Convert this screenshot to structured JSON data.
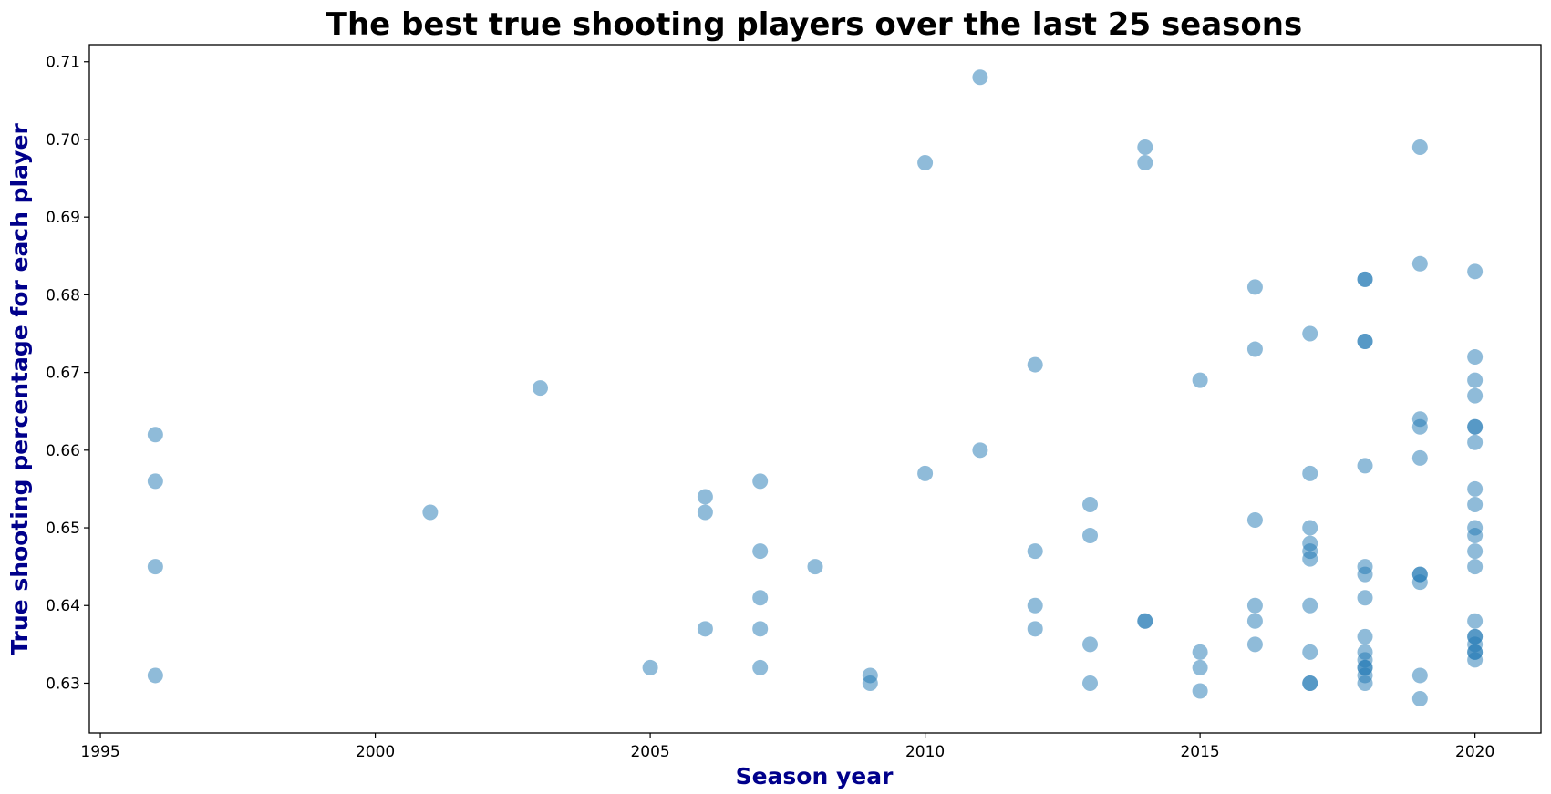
{
  "chart_data": {
    "type": "scatter",
    "title": "The best true shooting players over the last 25 seasons",
    "xlabel": "Season year",
    "ylabel": "True shooting percentage for each player",
    "xlim": [
      1994.8,
      2021.2
    ],
    "ylim": [
      0.6236,
      0.7122
    ],
    "xticks": [
      1995,
      2000,
      2005,
      2010,
      2015,
      2020
    ],
    "yticks": [
      0.63,
      0.64,
      0.65,
      0.66,
      0.67,
      0.68,
      0.69,
      0.7,
      0.71
    ],
    "grid": false,
    "legend": "none",
    "marker_color": "#1f77b4",
    "marker_alpha": 0.5,
    "axis_label_color": "#00008b",
    "points": [
      {
        "x": 1996,
        "y": 0.662
      },
      {
        "x": 1996,
        "y": 0.656
      },
      {
        "x": 1996,
        "y": 0.645
      },
      {
        "x": 1996,
        "y": 0.631
      },
      {
        "x": 2001,
        "y": 0.652
      },
      {
        "x": 2003,
        "y": 0.668
      },
      {
        "x": 2005,
        "y": 0.632
      },
      {
        "x": 2006,
        "y": 0.654
      },
      {
        "x": 2006,
        "y": 0.652
      },
      {
        "x": 2006,
        "y": 0.637
      },
      {
        "x": 2007,
        "y": 0.656
      },
      {
        "x": 2007,
        "y": 0.647
      },
      {
        "x": 2007,
        "y": 0.641
      },
      {
        "x": 2007,
        "y": 0.637
      },
      {
        "x": 2007,
        "y": 0.632
      },
      {
        "x": 2008,
        "y": 0.645
      },
      {
        "x": 2009,
        "y": 0.631
      },
      {
        "x": 2009,
        "y": 0.63
      },
      {
        "x": 2010,
        "y": 0.697
      },
      {
        "x": 2010,
        "y": 0.657
      },
      {
        "x": 2011,
        "y": 0.708
      },
      {
        "x": 2011,
        "y": 0.66
      },
      {
        "x": 2012,
        "y": 0.671
      },
      {
        "x": 2012,
        "y": 0.647
      },
      {
        "x": 2012,
        "y": 0.64
      },
      {
        "x": 2012,
        "y": 0.637
      },
      {
        "x": 2013,
        "y": 0.653
      },
      {
        "x": 2013,
        "y": 0.649
      },
      {
        "x": 2013,
        "y": 0.635
      },
      {
        "x": 2013,
        "y": 0.63
      },
      {
        "x": 2014,
        "y": 0.699
      },
      {
        "x": 2014,
        "y": 0.697
      },
      {
        "x": 2014,
        "y": 0.638
      },
      {
        "x": 2014,
        "y": 0.638
      },
      {
        "x": 2015,
        "y": 0.669
      },
      {
        "x": 2015,
        "y": 0.634
      },
      {
        "x": 2015,
        "y": 0.632
      },
      {
        "x": 2015,
        "y": 0.629
      },
      {
        "x": 2016,
        "y": 0.681
      },
      {
        "x": 2016,
        "y": 0.673
      },
      {
        "x": 2016,
        "y": 0.651
      },
      {
        "x": 2016,
        "y": 0.64
      },
      {
        "x": 2016,
        "y": 0.638
      },
      {
        "x": 2016,
        "y": 0.635
      },
      {
        "x": 2017,
        "y": 0.675
      },
      {
        "x": 2017,
        "y": 0.657
      },
      {
        "x": 2017,
        "y": 0.65
      },
      {
        "x": 2017,
        "y": 0.648
      },
      {
        "x": 2017,
        "y": 0.647
      },
      {
        "x": 2017,
        "y": 0.646
      },
      {
        "x": 2017,
        "y": 0.64
      },
      {
        "x": 2017,
        "y": 0.634
      },
      {
        "x": 2017,
        "y": 0.63
      },
      {
        "x": 2017,
        "y": 0.63
      },
      {
        "x": 2018,
        "y": 0.682
      },
      {
        "x": 2018,
        "y": 0.682
      },
      {
        "x": 2018,
        "y": 0.674
      },
      {
        "x": 2018,
        "y": 0.674
      },
      {
        "x": 2018,
        "y": 0.658
      },
      {
        "x": 2018,
        "y": 0.645
      },
      {
        "x": 2018,
        "y": 0.644
      },
      {
        "x": 2018,
        "y": 0.641
      },
      {
        "x": 2018,
        "y": 0.636
      },
      {
        "x": 2018,
        "y": 0.634
      },
      {
        "x": 2018,
        "y": 0.633
      },
      {
        "x": 2018,
        "y": 0.632
      },
      {
        "x": 2018,
        "y": 0.632
      },
      {
        "x": 2018,
        "y": 0.631
      },
      {
        "x": 2018,
        "y": 0.63
      },
      {
        "x": 2019,
        "y": 0.699
      },
      {
        "x": 2019,
        "y": 0.684
      },
      {
        "x": 2019,
        "y": 0.664
      },
      {
        "x": 2019,
        "y": 0.663
      },
      {
        "x": 2019,
        "y": 0.659
      },
      {
        "x": 2019,
        "y": 0.644
      },
      {
        "x": 2019,
        "y": 0.644
      },
      {
        "x": 2019,
        "y": 0.643
      },
      {
        "x": 2019,
        "y": 0.631
      },
      {
        "x": 2019,
        "y": 0.628
      },
      {
        "x": 2020,
        "y": 0.683
      },
      {
        "x": 2020,
        "y": 0.672
      },
      {
        "x": 2020,
        "y": 0.669
      },
      {
        "x": 2020,
        "y": 0.667
      },
      {
        "x": 2020,
        "y": 0.663
      },
      {
        "x": 2020,
        "y": 0.663
      },
      {
        "x": 2020,
        "y": 0.661
      },
      {
        "x": 2020,
        "y": 0.655
      },
      {
        "x": 2020,
        "y": 0.653
      },
      {
        "x": 2020,
        "y": 0.65
      },
      {
        "x": 2020,
        "y": 0.649
      },
      {
        "x": 2020,
        "y": 0.647
      },
      {
        "x": 2020,
        "y": 0.645
      },
      {
        "x": 2020,
        "y": 0.638
      },
      {
        "x": 2020,
        "y": 0.636
      },
      {
        "x": 2020,
        "y": 0.636
      },
      {
        "x": 2020,
        "y": 0.635
      },
      {
        "x": 2020,
        "y": 0.634
      },
      {
        "x": 2020,
        "y": 0.634
      },
      {
        "x": 2020,
        "y": 0.633
      }
    ]
  }
}
